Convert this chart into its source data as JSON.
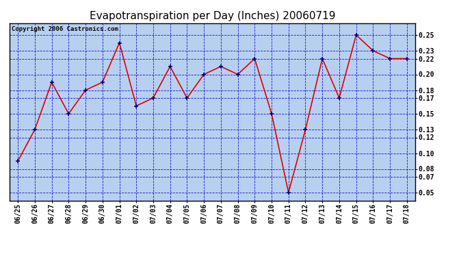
{
  "title": "Evapotranspiration per Day (Inches) 20060719",
  "copyright_text": "Copyright 2006 Castronics.com",
  "dates": [
    "06/25",
    "06/26",
    "06/27",
    "06/28",
    "06/29",
    "06/30",
    "07/01",
    "07/02",
    "07/03",
    "07/04",
    "07/05",
    "07/06",
    "07/07",
    "07/08",
    "07/09",
    "07/10",
    "07/11",
    "07/12",
    "07/13",
    "07/14",
    "07/15",
    "07/16",
    "07/17",
    "07/18"
  ],
  "values": [
    0.09,
    0.13,
    0.19,
    0.15,
    0.18,
    0.19,
    0.24,
    0.16,
    0.17,
    0.21,
    0.17,
    0.2,
    0.21,
    0.2,
    0.22,
    0.15,
    0.05,
    0.13,
    0.22,
    0.17,
    0.25,
    0.23,
    0.22,
    0.22
  ],
  "line_color": "#dd0000",
  "marker_color": "#000080",
  "bg_color": "#b8d0f0",
  "grid_color": "#0000cc",
  "yticks": [
    0.05,
    0.07,
    0.08,
    0.1,
    0.12,
    0.13,
    0.15,
    0.17,
    0.18,
    0.2,
    0.22,
    0.23,
    0.25
  ],
  "ylim": [
    0.04,
    0.265
  ],
  "title_fontsize": 11,
  "tick_fontsize": 7,
  "copyright_fontsize": 6.5
}
